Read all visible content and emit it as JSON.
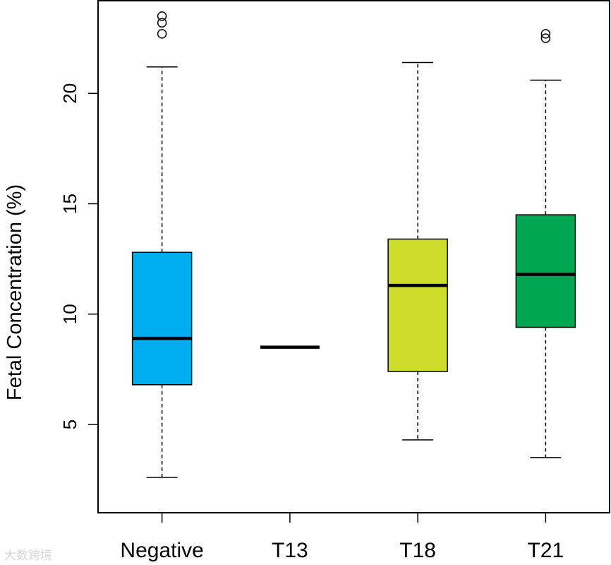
{
  "chart_data": {
    "type": "box",
    "title": "",
    "xlabel": "",
    "ylabel": "Fetal Concentration (%)",
    "ylim": [
      1,
      24.2
    ],
    "yticks": [
      5,
      10,
      15,
      20
    ],
    "ytick_labels": [
      "5",
      "10",
      "15",
      "20"
    ],
    "categories": [
      "Negative",
      "T13",
      "T18",
      "T21"
    ],
    "boxes": [
      {
        "name": "Negative",
        "color": "#00AEEF",
        "whisker_low": 2.6,
        "q1": 6.8,
        "median": 8.9,
        "q3": 12.8,
        "whisker_high": 21.2,
        "outliers": [
          22.7,
          23.2,
          23.5
        ]
      },
      {
        "name": "T13",
        "color": "#FFFFFF",
        "whisker_low": 8.5,
        "q1": 8.5,
        "median": 8.5,
        "q3": 8.5,
        "whisker_high": 8.5,
        "outliers": []
      },
      {
        "name": "T18",
        "color": "#CDDC2A",
        "whisker_low": 4.3,
        "q1": 7.4,
        "median": 11.3,
        "q3": 13.4,
        "whisker_high": 21.4,
        "outliers": []
      },
      {
        "name": "T21",
        "color": "#00A651",
        "whisker_low": 3.5,
        "q1": 9.4,
        "median": 11.8,
        "q3": 14.5,
        "whisker_high": 20.6,
        "outliers": [
          22.5,
          22.7
        ]
      }
    ],
    "grid": false,
    "legend": "none"
  },
  "watermark": "大数跨境"
}
